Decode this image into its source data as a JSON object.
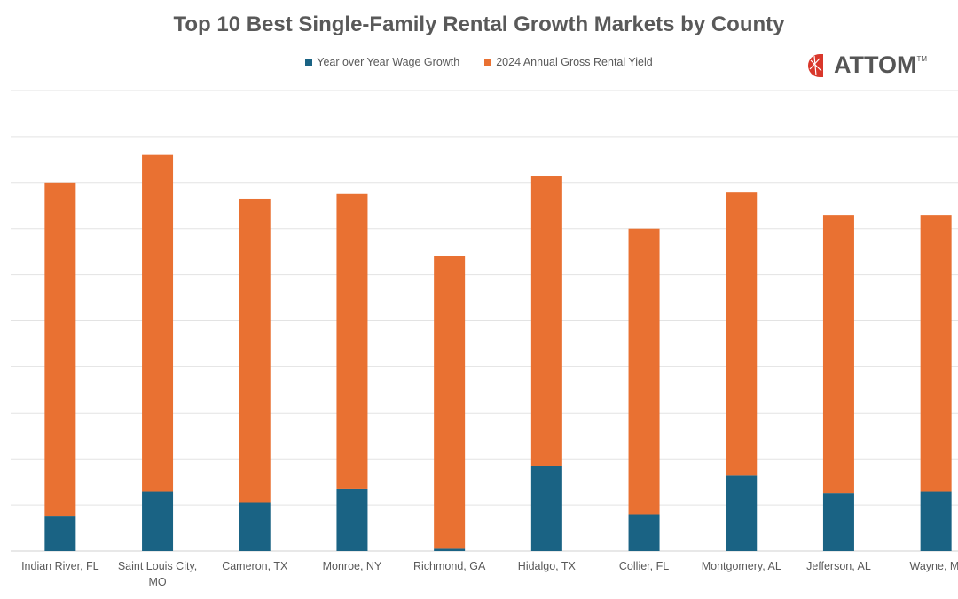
{
  "chart_data": {
    "type": "bar",
    "stacked": true,
    "title": "Top 10 Best Single-Family Rental Growth Markets by County",
    "categories": [
      "Indian River, FL",
      "Saint Louis City, MO",
      "Cameron, TX",
      "Monroe, NY",
      "Richmond, GA",
      "Hidalgo, TX",
      "Collier, FL",
      "Montgomery, AL",
      "Jefferson, AL",
      "Wayne, MI"
    ],
    "series": [
      {
        "name": "Year over Year Wage Growth",
        "color": "#1a6384",
        "values": [
          1.5,
          2.6,
          2.1,
          2.7,
          0.1,
          3.7,
          1.6,
          3.3,
          2.5,
          2.6
        ]
      },
      {
        "name": "2024 Annual Gross Rental Yield",
        "color": "#e97132",
        "values": [
          14.5,
          14.6,
          13.2,
          12.8,
          12.7,
          12.6,
          12.4,
          12.3,
          12.1,
          12.0
        ]
      }
    ],
    "ylim": [
      0,
      20
    ],
    "ytick_step": 2,
    "grid": true,
    "ytick_labels_visible": false,
    "legend": "top"
  },
  "logo": {
    "text": "ATTOM",
    "tm": "TM",
    "color": "#d9372b"
  }
}
